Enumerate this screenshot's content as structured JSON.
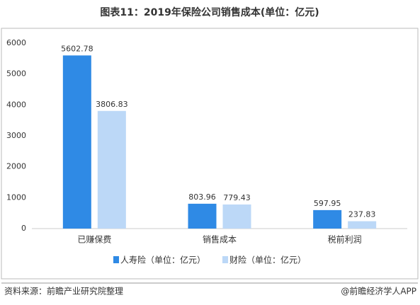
{
  "chart_data": {
    "type": "bar",
    "title": "图表11：2019年保险公司销售成本(单位：亿元)",
    "categories": [
      "已赚保费",
      "销售成本",
      "税前利润"
    ],
    "series": [
      {
        "name": "人寿险（单位：亿元）",
        "color": "#2f8ae5",
        "values": [
          5602.78,
          803.96,
          597.95
        ]
      },
      {
        "name": "财险（单位：亿元）",
        "color": "#bcd8f7",
        "values": [
          3806.83,
          779.43,
          237.83
        ]
      }
    ],
    "ylim": [
      0,
      6000
    ],
    "yticks": [
      0,
      1000,
      2000,
      3000,
      4000,
      5000,
      6000
    ],
    "grid": false,
    "legend": "bottom",
    "source": "资料来源：前瞻产业研究院整理",
    "credit": "@前瞻经济学人APP"
  }
}
